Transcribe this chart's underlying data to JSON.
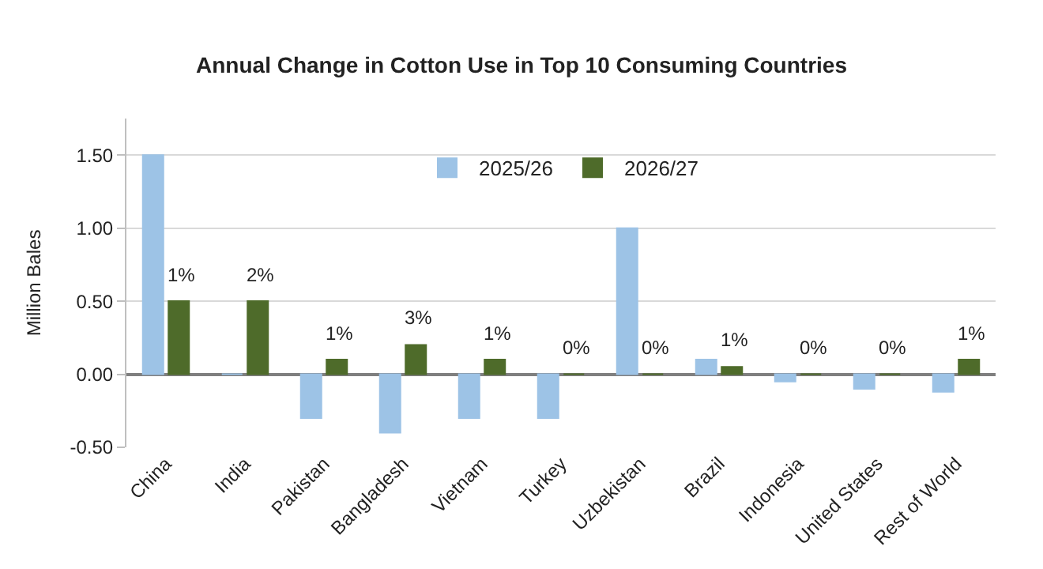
{
  "chart_data": {
    "type": "bar",
    "title": "Annual Change in Cotton Use in Top 10 Consuming Countries",
    "ylabel": "Million Bales",
    "categories": [
      "China",
      "India",
      "Pakistan",
      "Bangladesh",
      "Vietnam",
      "Turkey",
      "Uzbekistan",
      "Brazil",
      "Indonesia",
      "United States",
      "Rest of World"
    ],
    "series": [
      {
        "name": "2025/26",
        "color": "#9dc3e6",
        "values": [
          1.5,
          0,
          -0.3,
          -0.4,
          -0.3,
          -0.3,
          1.0,
          0.1,
          -0.05,
          -0.1,
          -0.12
        ]
      },
      {
        "name": "2026/27",
        "color": "#4e6b2a",
        "values": [
          0.5,
          0.5,
          0.1,
          0.2,
          0.1,
          0,
          0,
          0.05,
          0,
          0,
          0.1
        ]
      }
    ],
    "annotations": [
      {
        "text": "1%",
        "x": "China",
        "y": 0.5
      },
      {
        "text": "2%",
        "x": "India",
        "y": 0.5
      },
      {
        "text": "1%",
        "x": "Pakistan",
        "y": 0.1
      },
      {
        "text": "3%",
        "x": "Bangladesh",
        "y": 0.2
      },
      {
        "text": "1%",
        "x": "Vietnam",
        "y": 0.1
      },
      {
        "text": "0%",
        "x": "Turkey",
        "y": 0
      },
      {
        "text": "0%",
        "x": "Uzbekistan",
        "y": 0
      },
      {
        "text": "1%",
        "x": "Brazil",
        "y": 0.05
      },
      {
        "text": "0%",
        "x": "Indonesia",
        "y": 0
      },
      {
        "text": "0%",
        "x": "United States",
        "y": 0
      },
      {
        "text": "1%",
        "x": "Rest of World",
        "y": 0.1
      }
    ],
    "ylim": [
      -0.5,
      1.75
    ],
    "yticks": [
      {
        "value": -0.5,
        "label": "-0.50"
      },
      {
        "value": 0,
        "label": "0.00"
      },
      {
        "value": 0.5,
        "label": "0.50"
      },
      {
        "value": 1.0,
        "label": "1.00"
      },
      {
        "value": 1.5,
        "label": "1.50"
      }
    ],
    "grid": "y",
    "legend": "top"
  }
}
